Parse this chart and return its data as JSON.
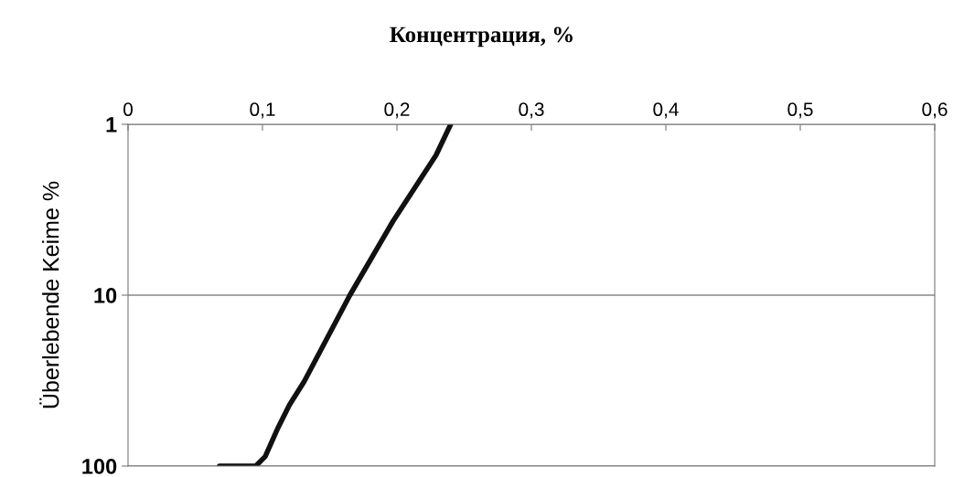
{
  "chart_data": {
    "type": "line",
    "title": "Концентрация, %",
    "ylabel": "Überlebende Keime %",
    "x": [
      0.068,
      0.095,
      0.102,
      0.111,
      0.12,
      0.131,
      0.165,
      0.197,
      0.229,
      0.24
    ],
    "series": [
      {
        "color": "#111111",
        "values": [
          100,
          100,
          88,
          61,
          44,
          32,
          10,
          3.7,
          1.52,
          1
        ]
      }
    ],
    "xlim": [
      0,
      0.6
    ],
    "xticks": [
      0,
      {
        "value": 0.1,
        "label": "0,1"
      },
      {
        "value": 0.2,
        "label": "0,2"
      },
      {
        "value": 0.3,
        "label": "0,3"
      },
      {
        "value": 0.4,
        "label": "0,4"
      },
      {
        "value": 0.5,
        "label": "0,5"
      },
      {
        "value": 0.6,
        "label": "0,6"
      }
    ],
    "log": "y",
    "ylim": [
      100,
      1
    ],
    "yticks": [
      1,
      10,
      100
    ],
    "grid": "y",
    "marker": "none",
    "line_style": "solid"
  }
}
